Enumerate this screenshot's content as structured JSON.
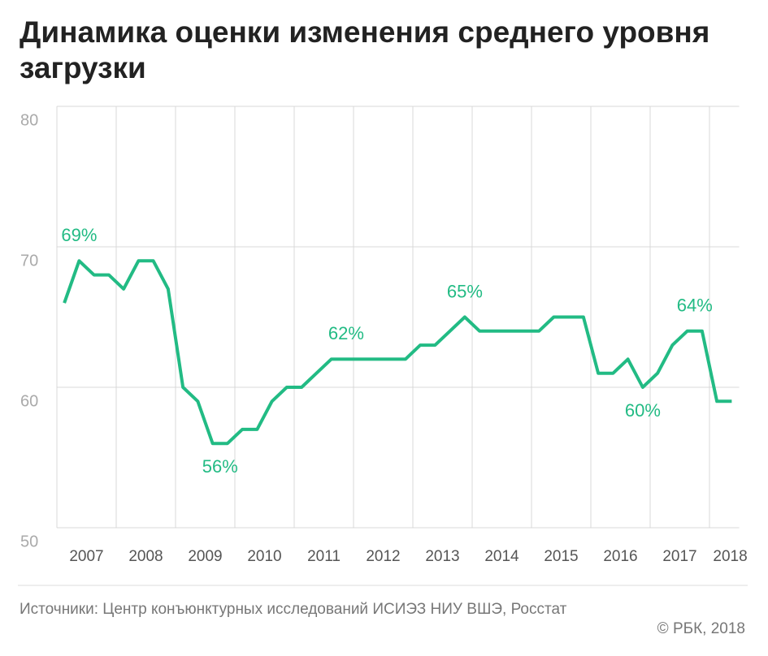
{
  "chart_data": {
    "type": "line",
    "title": "Динамика оценки изменения среднего уровня загрузки",
    "x": [
      2007.125,
      2007.375,
      2007.625,
      2007.875,
      2008.125,
      2008.375,
      2008.625,
      2008.875,
      2009.125,
      2009.375,
      2009.625,
      2009.875,
      2010.125,
      2010.375,
      2010.625,
      2010.875,
      2011.125,
      2011.375,
      2011.625,
      2011.875,
      2012.125,
      2012.375,
      2012.625,
      2012.875,
      2013.125,
      2013.375,
      2013.625,
      2013.875,
      2014.125,
      2014.375,
      2014.625,
      2014.875,
      2015.125,
      2015.375,
      2015.625,
      2015.875,
      2016.125,
      2016.375,
      2016.625,
      2016.875,
      2017.125,
      2017.375,
      2017.625,
      2017.875,
      2018.125,
      2018.375
    ],
    "series": [
      {
        "color": "#22bb84",
        "values": [
          66,
          69,
          68,
          68,
          67,
          69,
          69,
          67,
          60,
          59,
          56,
          56,
          57,
          57,
          59,
          60,
          60,
          61,
          62,
          62,
          62,
          62,
          62,
          62,
          63,
          63,
          64,
          65,
          64,
          64,
          64,
          64,
          64,
          65,
          65,
          65,
          61,
          61,
          62,
          60,
          61,
          63,
          64,
          64,
          59,
          59
        ]
      }
    ],
    "annotations": [
      {
        "text": "69%",
        "x": 2007.375,
        "y": 69,
        "position": "above"
      },
      {
        "text": "56%",
        "x": 2009.75,
        "y": 56,
        "position": "below"
      },
      {
        "text": "62%",
        "x": 2011.875,
        "y": 62,
        "position": "above"
      },
      {
        "text": "65%",
        "x": 2013.875,
        "y": 65,
        "position": "above"
      },
      {
        "text": "60%",
        "x": 2016.875,
        "y": 60,
        "position": "below"
      },
      {
        "text": "64%",
        "x": 2017.75,
        "y": 64,
        "position": "above"
      }
    ],
    "xlim": [
      2007,
      2018.5
    ],
    "xticks": [
      {
        "value": 2007.5,
        "label": "2007"
      },
      {
        "value": 2008.5,
        "label": "2008"
      },
      {
        "value": 2009.5,
        "label": "2009"
      },
      {
        "value": 2010.5,
        "label": "2010"
      },
      {
        "value": 2011.5,
        "label": "2011"
      },
      {
        "value": 2012.5,
        "label": "2012"
      },
      {
        "value": 2013.5,
        "label": "2013"
      },
      {
        "value": 2014.5,
        "label": "2014"
      },
      {
        "value": 2015.5,
        "label": "2015"
      },
      {
        "value": 2016.5,
        "label": "2016"
      },
      {
        "value": 2017.5,
        "label": "2017"
      },
      {
        "value": 2018.35,
        "label": "2018"
      }
    ],
    "xgrid": [
      2007,
      2008,
      2009,
      2010,
      2011,
      2012,
      2013,
      2014,
      2015,
      2016,
      2017,
      2018
    ],
    "ylim": [
      50,
      80
    ],
    "yticks": [
      50,
      60,
      70,
      80
    ],
    "grid": true,
    "source": "Источники: Центр конъюнктурных исследований ИСИЭЗ НИУ ВШЭ, Росстат",
    "credit": "© РБК, 2018"
  }
}
